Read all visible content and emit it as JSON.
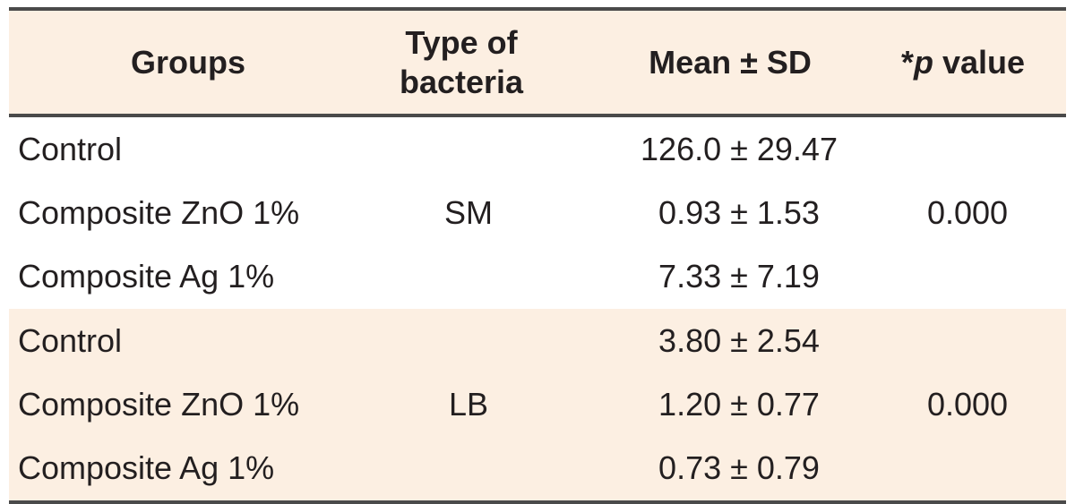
{
  "header": {
    "groups": "Groups",
    "type_line1": "Type of",
    "type_line2": "bacteria",
    "mean": "Mean ± SD",
    "p_prefix": "*",
    "p_italic": "p",
    "p_suffix": " value"
  },
  "sections": [
    {
      "type": "SM",
      "p_value": "0.000",
      "rows": [
        {
          "group": "Control",
          "mean_sd": "126.0 ± 29.47"
        },
        {
          "group": "Composite ZnO 1%",
          "mean_sd": "0.93 ± 1.53"
        },
        {
          "group": "Composite Ag 1%",
          "mean_sd": "7.33 ± 7.19"
        }
      ]
    },
    {
      "type": "LB",
      "p_value": "0.000",
      "rows": [
        {
          "group": "Control",
          "mean_sd": "3.80 ± 2.54"
        },
        {
          "group": "Composite ZnO 1%",
          "mean_sd": "1.20 ± 0.77"
        },
        {
          "group": "Composite Ag 1%",
          "mean_sd": "0.73 ± 0.79"
        }
      ]
    }
  ],
  "colors": {
    "shade": "#fcefe2",
    "rule": "#4a4a4a"
  }
}
